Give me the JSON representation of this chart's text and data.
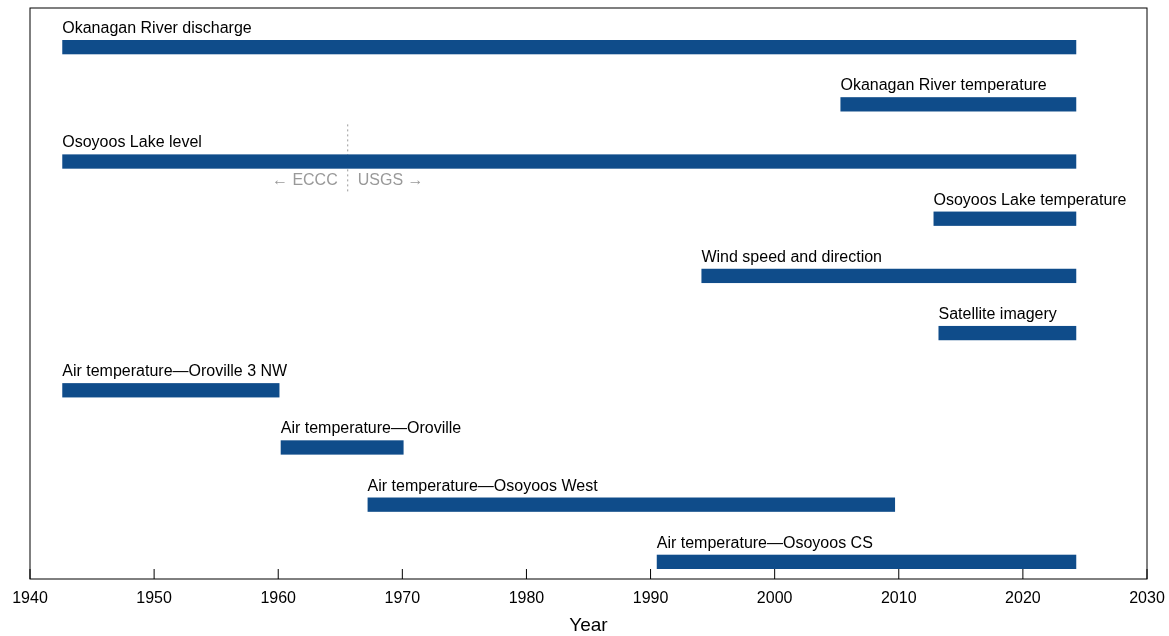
{
  "chart_data": {
    "type": "bar",
    "orientation": "horizontal",
    "xlabel": "Year",
    "categories": [
      "Okanagan River discharge",
      "Okanagan River temperature",
      "Osoyoos Lake level",
      "Osoyoos Lake temperature",
      "Wind speed and direction",
      "Satellite imagery",
      "Air temperature—Oroville 3 NW",
      "Air temperature—Oroville",
      "Air temperature—Osoyoos West",
      "Air temperature—Osoyoos CS"
    ],
    "base": [
      1942.6,
      2005.3,
      1942.6,
      2012.8,
      1994.1,
      2013.2,
      1942.6,
      1960.2,
      1967.2,
      1990.5
    ],
    "values": [
      81.7,
      19.0,
      81.7,
      11.5,
      30.2,
      11.1,
      17.5,
      9.9,
      42.5,
      33.8
    ],
    "color": "#0f4c8a",
    "xlim": [
      1940,
      2030
    ],
    "xticks": [
      1940,
      1950,
      1960,
      1970,
      1980,
      1990,
      2000,
      2010,
      2020,
      2030
    ],
    "grid": false,
    "ref_lines": [
      {
        "axis": "x",
        "value": 1965.6,
        "color": "#999999",
        "line_style": "dotted"
      }
    ],
    "annotations": [
      "← ECCC",
      "USGS →"
    ]
  }
}
